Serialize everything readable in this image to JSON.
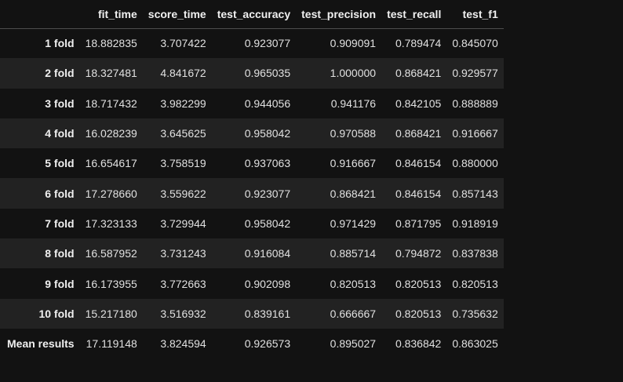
{
  "table": {
    "corner": "",
    "columns": [
      "fit_time",
      "score_time",
      "test_accuracy",
      "test_precision",
      "test_recall",
      "test_f1"
    ],
    "rows": [
      {
        "label": "1 fold",
        "values": [
          "18.882835",
          "3.707422",
          "0.923077",
          "0.909091",
          "0.789474",
          "0.845070"
        ]
      },
      {
        "label": "2 fold",
        "values": [
          "18.327481",
          "4.841672",
          "0.965035",
          "1.000000",
          "0.868421",
          "0.929577"
        ]
      },
      {
        "label": "3 fold",
        "values": [
          "18.717432",
          "3.982299",
          "0.944056",
          "0.941176",
          "0.842105",
          "0.888889"
        ]
      },
      {
        "label": "4 fold",
        "values": [
          "16.028239",
          "3.645625",
          "0.958042",
          "0.970588",
          "0.868421",
          "0.916667"
        ]
      },
      {
        "label": "5 fold",
        "values": [
          "16.654617",
          "3.758519",
          "0.937063",
          "0.916667",
          "0.846154",
          "0.880000"
        ]
      },
      {
        "label": "6 fold",
        "values": [
          "17.278660",
          "3.559622",
          "0.923077",
          "0.868421",
          "0.846154",
          "0.857143"
        ]
      },
      {
        "label": "7 fold",
        "values": [
          "17.323133",
          "3.729944",
          "0.958042",
          "0.971429",
          "0.871795",
          "0.918919"
        ]
      },
      {
        "label": "8 fold",
        "values": [
          "16.587952",
          "3.731243",
          "0.916084",
          "0.885714",
          "0.794872",
          "0.837838"
        ]
      },
      {
        "label": "9 fold",
        "values": [
          "16.173955",
          "3.772663",
          "0.902098",
          "0.820513",
          "0.820513",
          "0.820513"
        ]
      },
      {
        "label": "10 fold",
        "values": [
          "15.217180",
          "3.516932",
          "0.839161",
          "0.666667",
          "0.820513",
          "0.735632"
        ]
      },
      {
        "label": "Mean results",
        "values": [
          "17.119148",
          "3.824594",
          "0.926573",
          "0.895027",
          "0.836842",
          "0.863025"
        ]
      }
    ]
  },
  "colors": {
    "background": "#121212",
    "row_stripe": "#222222",
    "header_rule": "#4d4d4d",
    "text": "#e6e6e6"
  }
}
